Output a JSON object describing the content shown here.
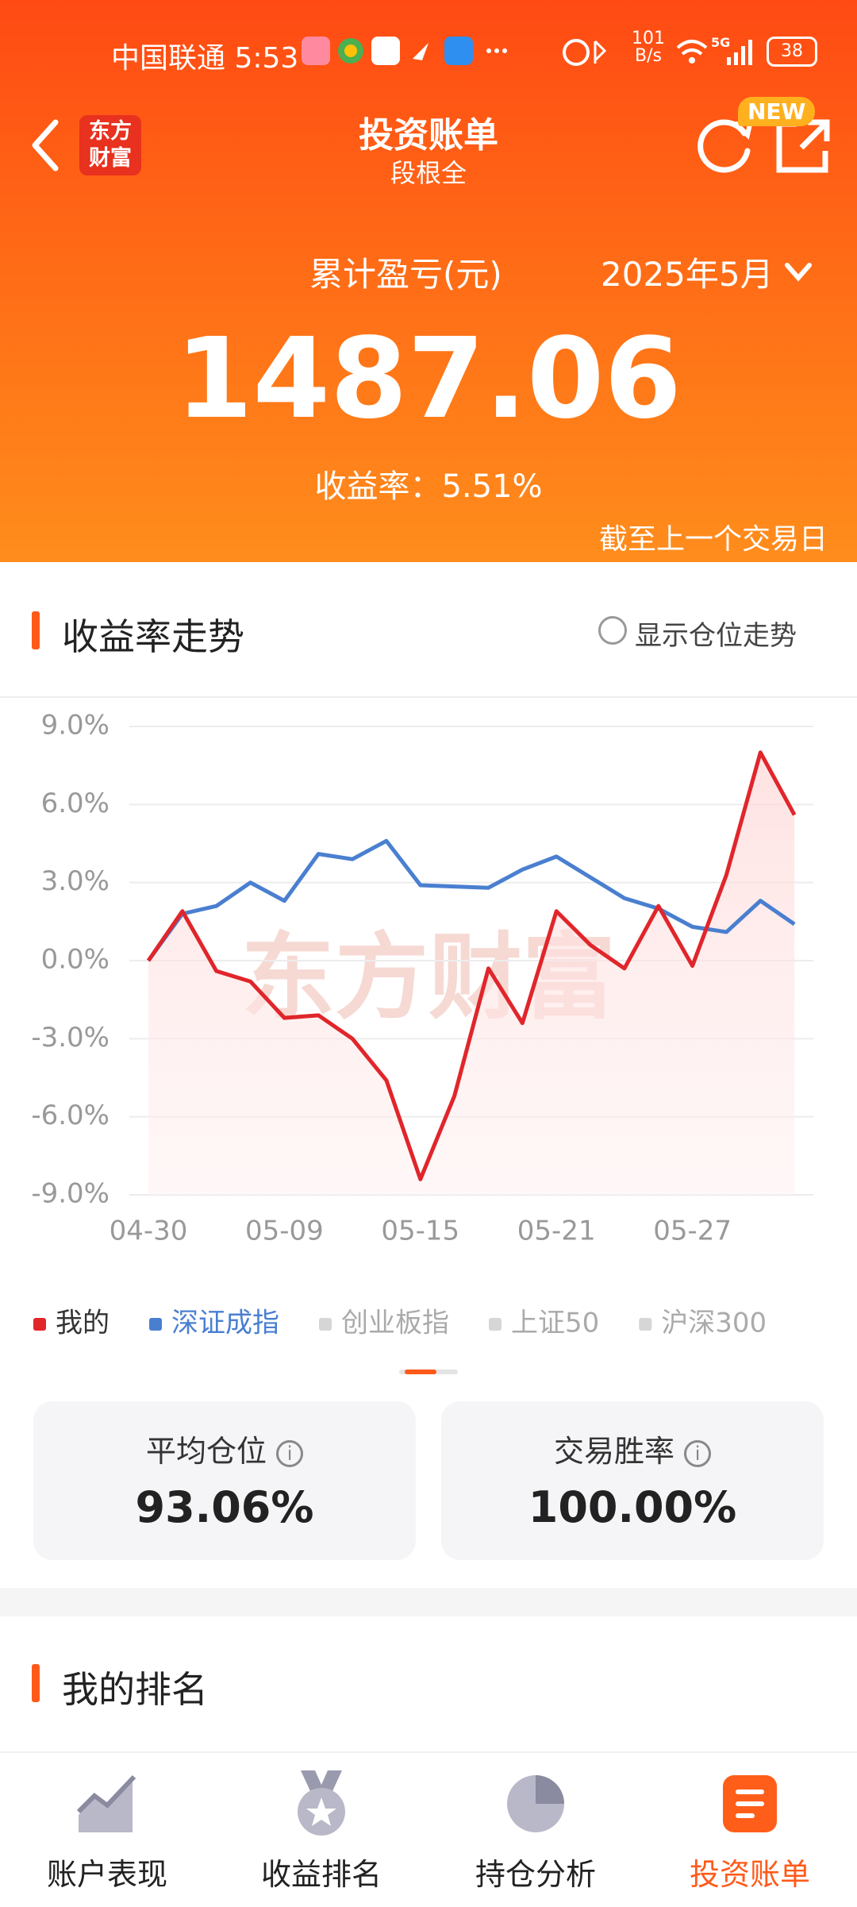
{
  "status_bar": {
    "carrier_time": "中国联通 5:53",
    "speed_value": "101",
    "speed_unit": "B/s",
    "network": "5G",
    "battery": "38"
  },
  "header": {
    "logo": [
      "东方",
      "财富"
    ],
    "title": "投资账单",
    "subtitle": "段根全",
    "badge": "NEW"
  },
  "summary": {
    "label": "累计盈亏(元)",
    "month": "2025年5月",
    "total": "1487.06",
    "return_label": "收益率：",
    "return_value": "5.51%",
    "note": "截至上一个交易日"
  },
  "trend_section": {
    "title": "收益率走势",
    "toggle": "显示仓位走势"
  },
  "chart_data": {
    "type": "line",
    "watermark": "东方财富",
    "categories": [
      "04-30",
      null,
      null,
      null,
      "05-09",
      null,
      null,
      null,
      "05-15",
      null,
      null,
      null,
      "05-21",
      null,
      null,
      null,
      "05-27",
      null,
      null,
      null
    ],
    "series": [
      {
        "name": "我的",
        "color": "#e0262b",
        "fill": true,
        "values": [
          0.0,
          1.9,
          -0.4,
          -0.8,
          -2.2,
          -2.1,
          -3.0,
          -4.6,
          -8.4,
          -5.2,
          -0.3,
          -2.4,
          1.9,
          0.6,
          -0.3,
          2.1,
          -0.2,
          3.3,
          8.0,
          5.6
        ]
      },
      {
        "name": "深证成指",
        "color": "#4a7fd0",
        "fill": false,
        "values": [
          0.0,
          1.8,
          2.1,
          3.0,
          2.3,
          4.1,
          3.9,
          4.6,
          2.9,
          2.85,
          2.8,
          3.5,
          4.0,
          3.2,
          2.4,
          2.0,
          1.3,
          1.1,
          2.3,
          1.4
        ]
      }
    ],
    "inactive_legend": [
      "创业板指",
      "上证50",
      "沪深300"
    ],
    "ylim": [
      -9,
      9
    ],
    "yticks": [
      {
        "value": 9,
        "label": "9.0%"
      },
      {
        "value": 6,
        "label": "6.0%"
      },
      {
        "value": 3,
        "label": "3.0%"
      },
      {
        "value": 0,
        "label": "0.0%"
      },
      {
        "value": -3,
        "label": "-3.0%"
      },
      {
        "value": -6,
        "label": "-6.0%"
      },
      {
        "value": -9,
        "label": "-9.0%"
      }
    ],
    "grid": true
  },
  "stats": [
    {
      "label": "平均仓位",
      "value": "93.06%"
    },
    {
      "label": "交易胜率",
      "value": "100.00%"
    }
  ],
  "ranking_section": {
    "title": "我的排名"
  },
  "nav": [
    "账户表现",
    "收益排名",
    "持仓分析",
    "投资账单"
  ]
}
